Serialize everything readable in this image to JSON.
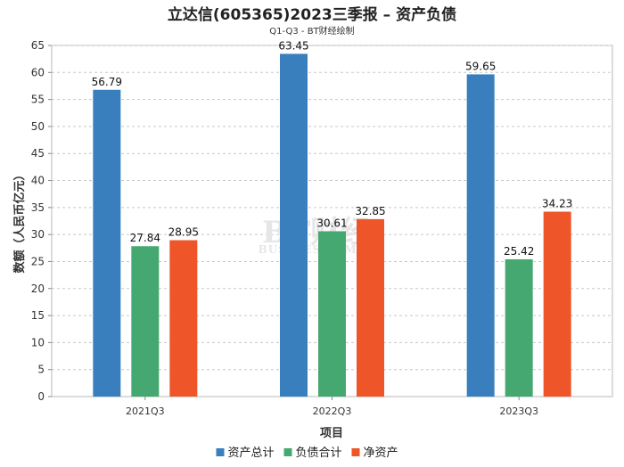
{
  "chart_data": {
    "type": "bar",
    "title": "立达信(605365)2023三季报 – 资产负债",
    "subtitle": "Q1-Q3 - BT财经绘制",
    "xlabel": "项目",
    "ylabel": "数额（人民币亿元）",
    "categories": [
      "2021Q3",
      "2022Q3",
      "2023Q3"
    ],
    "ylim": [
      0,
      65
    ],
    "yticks": [
      0,
      5,
      10,
      15,
      20,
      25,
      30,
      35,
      40,
      45,
      50,
      55,
      60,
      65
    ],
    "grid": true,
    "legend_position": "bottom",
    "series": [
      {
        "name": "资产总计",
        "color": "#3a7fbd",
        "values": [
          56.79,
          63.45,
          59.65
        ]
      },
      {
        "name": "负债合计",
        "color": "#46a871",
        "values": [
          27.84,
          30.61,
          25.42
        ]
      },
      {
        "name": "净资产",
        "color": "#ee5528",
        "values": [
          28.95,
          32.85,
          34.23
        ]
      }
    ]
  },
  "watermark": {
    "main": "BT财经",
    "sub": "BUSINESSTIMES"
  }
}
